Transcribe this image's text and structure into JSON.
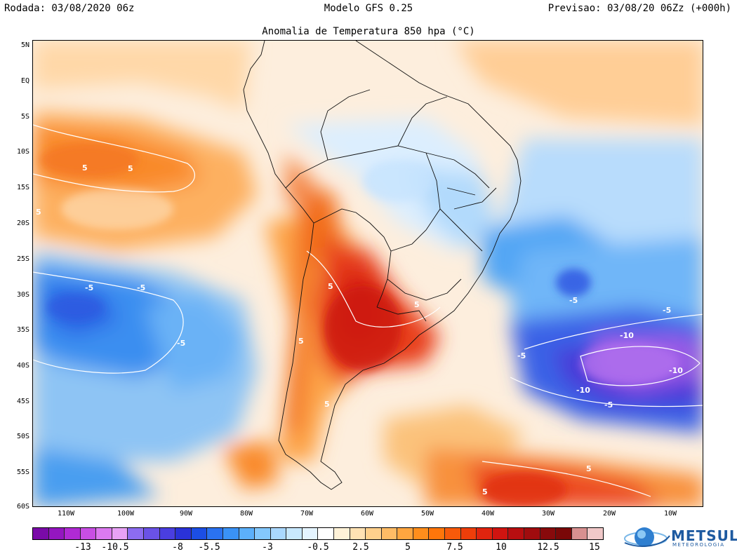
{
  "header": {
    "left": "Rodada: 03/08/2020 06z",
    "center": "Modelo GFS 0.25",
    "right": "Previsao: 03/08/20 06Zz (+000h)"
  },
  "map": {
    "title": "Anomalia de Temperatura 850 hpa (°C)",
    "lat_labels": [
      "5N",
      "EQ",
      "5S",
      "10S",
      "15S",
      "20S",
      "25S",
      "30S",
      "35S",
      "40S",
      "45S",
      "50S",
      "55S",
      "60S"
    ],
    "lon_labels": [
      "110W",
      "100W",
      "90W",
      "80W",
      "70W",
      "60W",
      "50W",
      "40W",
      "30W",
      "20W",
      "10W"
    ],
    "contour_labels": [
      "5",
      "5",
      "5",
      "-5",
      "-5",
      "-5",
      "5",
      "5",
      "5",
      "5",
      "-5",
      "-5",
      "-5",
      "-10",
      "-10",
      "-10",
      "-5",
      "5",
      "5"
    ]
  },
  "colorbar": {
    "colors": [
      "#7a0aa8",
      "#9416c0",
      "#b02ad4",
      "#c84ee4",
      "#dc7af0",
      "#e8a2f6",
      "#8c6cf0",
      "#6a52e6",
      "#4a3ee0",
      "#2a32d8",
      "#1c4ee4",
      "#2a72f0",
      "#3a92f6",
      "#5cb0fa",
      "#84c8fc",
      "#aad8fe",
      "#c8e8fe",
      "#e4f4ff",
      "#ffffff",
      "#fff2d8",
      "#ffe2b4",
      "#ffd08c",
      "#ffbc66",
      "#ffa640",
      "#ff8e1c",
      "#ff760a",
      "#f85a0a",
      "#ee3e0a",
      "#e0240e",
      "#d01410",
      "#b80e10",
      "#a00c0e",
      "#880a0c",
      "#7a0808",
      "#d89090",
      "#f0c8c8"
    ],
    "labels": [
      "-13",
      "-10.5",
      "-8",
      "-5.5",
      "-3",
      "-0.5",
      "2.5",
      "5",
      "7.5",
      "10",
      "12.5",
      "15"
    ]
  },
  "logo": {
    "name": "METSUL",
    "subtitle": "METEOROLOGIA"
  }
}
